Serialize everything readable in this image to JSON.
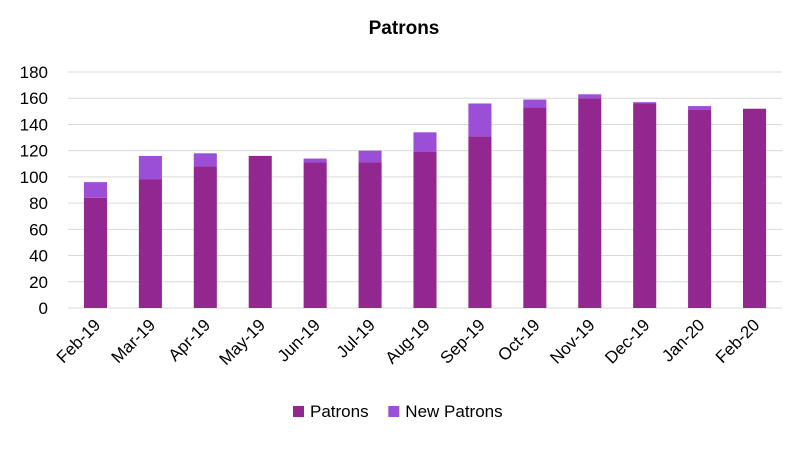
{
  "chart_data": {
    "type": "bar",
    "stacked": true,
    "title": "Patrons",
    "xlabel": "",
    "ylabel": "",
    "ylim": [
      0,
      180
    ],
    "yticks": [
      0,
      20,
      40,
      60,
      80,
      100,
      120,
      140,
      160,
      180
    ],
    "grid": true,
    "legend_position": "bottom",
    "categories": [
      "Feb-19",
      "Mar-19",
      "Apr-19",
      "May-19",
      "Jun-19",
      "Jul-19",
      "Aug-19",
      "Sep-19",
      "Oct-19",
      "Nov-19",
      "Dec-19",
      "Jan-20",
      "Feb-20"
    ],
    "series": [
      {
        "name": "Patrons",
        "color": "#92278f",
        "values": [
          84,
          98,
          108,
          116,
          111,
          111,
          119,
          131,
          153,
          160,
          156,
          151,
          152
        ]
      },
      {
        "name": "New Patrons",
        "color": "#9b4fd6",
        "values": [
          12,
          18,
          10,
          0,
          3,
          9,
          15,
          25,
          6,
          3,
          1,
          3,
          0
        ]
      }
    ]
  }
}
